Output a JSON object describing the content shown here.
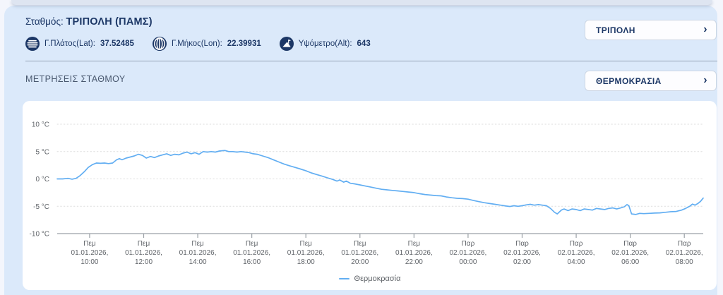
{
  "page": {
    "station_label": "Σταθμός:",
    "station_name": "ΤΡΙΠΟΛΗ (ΠΑΜΣ)",
    "meta": [
      {
        "icon": "latitude-globe-icon",
        "label": "Γ.Πλάτος(Lat):",
        "value": "37.52485"
      },
      {
        "icon": "longitude-globe-icon",
        "label": "Γ.Μήκος(Lon):",
        "value": "22.39931"
      },
      {
        "icon": "altitude-mountain-icon",
        "label": "Υψόμετρο(Alt):",
        "value": "643"
      }
    ],
    "station_selector": {
      "label": "ΤΡΙΠΟΛΗ",
      "chevron": "›"
    },
    "section_title": "ΜΕΤΡΗΣΕΙΣ ΣΤΑΘΜΟΥ",
    "measurement_selector": {
      "label": "ΘΕΡΜΟΚΡΑΣΙΑ",
      "chevron": "›"
    }
  },
  "colors": {
    "accent_navy": "#1c3766",
    "panel_blue": "#dbe9fa",
    "line_blue": "#62aef2"
  },
  "chart_data": {
    "type": "line",
    "title": "",
    "ylabel_unit": "°C",
    "ylim": [
      -10,
      10
    ],
    "x_range_hours": [
      8.8,
      32.7
    ],
    "grid": "horizontal-dotted",
    "legend_position": "bottom-center",
    "legend": {
      "label": "Θερμοκρασία"
    },
    "y_ticks": [
      {
        "value": 10,
        "label": "10 °C"
      },
      {
        "value": 5,
        "label": "5 °C"
      },
      {
        "value": 0,
        "label": "0 °C"
      },
      {
        "value": -5,
        "label": "-5 °C"
      },
      {
        "value": -10,
        "label": "-10 °C"
      }
    ],
    "x_ticks": [
      {
        "hour": 10,
        "lines": [
          "Πεμ",
          "01.01.2026,",
          "10:00"
        ]
      },
      {
        "hour": 12,
        "lines": [
          "Πεμ",
          "01.01.2026,",
          "12:00"
        ]
      },
      {
        "hour": 14,
        "lines": [
          "Πεμ",
          "01.01.2026,",
          "14:00"
        ]
      },
      {
        "hour": 16,
        "lines": [
          "Πεμ",
          "01.01.2026,",
          "16:00"
        ]
      },
      {
        "hour": 18,
        "lines": [
          "Πεμ",
          "01.01.2026,",
          "18:00"
        ]
      },
      {
        "hour": 20,
        "lines": [
          "Πεμ",
          "01.01.2026,",
          "20:00"
        ]
      },
      {
        "hour": 22,
        "lines": [
          "Πεμ",
          "01.01.2026,",
          "22:00"
        ]
      },
      {
        "hour": 24,
        "lines": [
          "Παρ",
          "02.01.2026,",
          "00:00"
        ]
      },
      {
        "hour": 26,
        "lines": [
          "Παρ",
          "02.01.2026,",
          "02:00"
        ]
      },
      {
        "hour": 28,
        "lines": [
          "Παρ",
          "02.01.2026,",
          "04:00"
        ]
      },
      {
        "hour": 30,
        "lines": [
          "Παρ",
          "02.01.2026,",
          "06:00"
        ]
      },
      {
        "hour": 32,
        "lines": [
          "Παρ",
          "02.01.2026,",
          "08:00"
        ]
      }
    ],
    "series": [
      {
        "name": "Θερμοκρασία",
        "color": "#62aef2",
        "points_hour_degc": [
          [
            8.8,
            0.0
          ],
          [
            9.0,
            0.0
          ],
          [
            9.2,
            0.1
          ],
          [
            9.35,
            -0.05
          ],
          [
            9.5,
            0.1
          ],
          [
            9.65,
            0.6
          ],
          [
            9.8,
            1.3
          ],
          [
            9.95,
            2.1
          ],
          [
            10.1,
            2.6
          ],
          [
            10.25,
            2.9
          ],
          [
            10.4,
            2.85
          ],
          [
            10.55,
            2.9
          ],
          [
            10.7,
            2.8
          ],
          [
            10.85,
            2.9
          ],
          [
            11.0,
            3.5
          ],
          [
            11.1,
            3.7
          ],
          [
            11.2,
            3.5
          ],
          [
            11.35,
            3.8
          ],
          [
            11.5,
            4.0
          ],
          [
            11.65,
            4.2
          ],
          [
            11.8,
            4.5
          ],
          [
            11.95,
            4.3
          ],
          [
            12.1,
            3.8
          ],
          [
            12.25,
            4.1
          ],
          [
            12.4,
            3.9
          ],
          [
            12.55,
            4.2
          ],
          [
            12.7,
            4.4
          ],
          [
            12.85,
            4.6
          ],
          [
            13.0,
            4.3
          ],
          [
            13.15,
            4.5
          ],
          [
            13.3,
            4.4
          ],
          [
            13.45,
            4.7
          ],
          [
            13.6,
            4.9
          ],
          [
            13.75,
            4.6
          ],
          [
            13.9,
            4.8
          ],
          [
            14.05,
            4.5
          ],
          [
            14.2,
            5.0
          ],
          [
            14.35,
            4.9
          ],
          [
            14.5,
            5.0
          ],
          [
            14.65,
            4.9
          ],
          [
            14.8,
            5.1
          ],
          [
            15.0,
            5.2
          ],
          [
            15.15,
            5.0
          ],
          [
            15.3,
            5.0
          ],
          [
            15.45,
            4.9
          ],
          [
            15.6,
            5.0
          ],
          [
            15.75,
            4.9
          ],
          [
            15.9,
            4.8
          ],
          [
            16.05,
            4.6
          ],
          [
            16.2,
            4.5
          ],
          [
            16.4,
            4.2
          ],
          [
            16.6,
            3.9
          ],
          [
            16.8,
            3.5
          ],
          [
            17.0,
            3.1
          ],
          [
            17.2,
            2.7
          ],
          [
            17.4,
            2.4
          ],
          [
            17.6,
            2.1
          ],
          [
            17.8,
            1.8
          ],
          [
            18.0,
            1.5
          ],
          [
            18.2,
            1.1
          ],
          [
            18.4,
            0.8
          ],
          [
            18.6,
            0.5
          ],
          [
            18.8,
            0.2
          ],
          [
            19.0,
            -0.1
          ],
          [
            19.15,
            -0.4
          ],
          [
            19.25,
            -0.2
          ],
          [
            19.4,
            -0.6
          ],
          [
            19.5,
            -0.4
          ],
          [
            19.65,
            -0.8
          ],
          [
            19.8,
            -0.9
          ],
          [
            20.0,
            -1.1
          ],
          [
            20.2,
            -1.3
          ],
          [
            20.4,
            -1.5
          ],
          [
            20.6,
            -1.7
          ],
          [
            20.8,
            -1.9
          ],
          [
            21.0,
            -2.0
          ],
          [
            21.2,
            -2.1
          ],
          [
            21.4,
            -2.2
          ],
          [
            21.6,
            -2.3
          ],
          [
            21.8,
            -2.4
          ],
          [
            22.0,
            -2.5
          ],
          [
            22.2,
            -2.7
          ],
          [
            22.4,
            -2.85
          ],
          [
            22.6,
            -2.95
          ],
          [
            22.8,
            -3.05
          ],
          [
            23.0,
            -3.1
          ],
          [
            23.2,
            -3.3
          ],
          [
            23.4,
            -3.45
          ],
          [
            23.6,
            -3.55
          ],
          [
            23.8,
            -3.6
          ],
          [
            24.0,
            -3.7
          ],
          [
            24.2,
            -3.95
          ],
          [
            24.4,
            -4.15
          ],
          [
            24.6,
            -4.35
          ],
          [
            24.8,
            -4.5
          ],
          [
            25.0,
            -4.65
          ],
          [
            25.2,
            -4.8
          ],
          [
            25.4,
            -4.95
          ],
          [
            25.55,
            -5.05
          ],
          [
            25.7,
            -4.9
          ],
          [
            25.85,
            -5.0
          ],
          [
            26.0,
            -4.9
          ],
          [
            26.15,
            -4.75
          ],
          [
            26.3,
            -4.65
          ],
          [
            26.45,
            -4.8
          ],
          [
            26.6,
            -4.7
          ],
          [
            26.75,
            -4.8
          ],
          [
            26.9,
            -4.9
          ],
          [
            27.05,
            -5.4
          ],
          [
            27.2,
            -6.1
          ],
          [
            27.3,
            -6.4
          ],
          [
            27.45,
            -5.7
          ],
          [
            27.55,
            -5.5
          ],
          [
            27.7,
            -5.8
          ],
          [
            27.85,
            -5.5
          ],
          [
            28.0,
            -5.6
          ],
          [
            28.15,
            -5.8
          ],
          [
            28.3,
            -5.5
          ],
          [
            28.45,
            -5.6
          ],
          [
            28.6,
            -5.7
          ],
          [
            28.75,
            -5.4
          ],
          [
            28.9,
            -5.5
          ],
          [
            29.05,
            -5.6
          ],
          [
            29.2,
            -5.4
          ],
          [
            29.35,
            -5.3
          ],
          [
            29.5,
            -5.5
          ],
          [
            29.65,
            -5.3
          ],
          [
            29.78,
            -5.1
          ],
          [
            29.88,
            -4.7
          ],
          [
            29.95,
            -4.9
          ],
          [
            30.05,
            -6.4
          ],
          [
            30.2,
            -6.5
          ],
          [
            30.35,
            -6.3
          ],
          [
            30.5,
            -6.35
          ],
          [
            30.7,
            -6.3
          ],
          [
            30.9,
            -6.25
          ],
          [
            31.1,
            -6.2
          ],
          [
            31.3,
            -6.1
          ],
          [
            31.5,
            -6.0
          ],
          [
            31.7,
            -5.95
          ],
          [
            31.9,
            -5.7
          ],
          [
            32.05,
            -5.4
          ],
          [
            32.2,
            -5.0
          ],
          [
            32.3,
            -4.6
          ],
          [
            32.4,
            -4.8
          ],
          [
            32.5,
            -4.5
          ],
          [
            32.6,
            -4.1
          ],
          [
            32.7,
            -3.5
          ]
        ]
      }
    ]
  }
}
